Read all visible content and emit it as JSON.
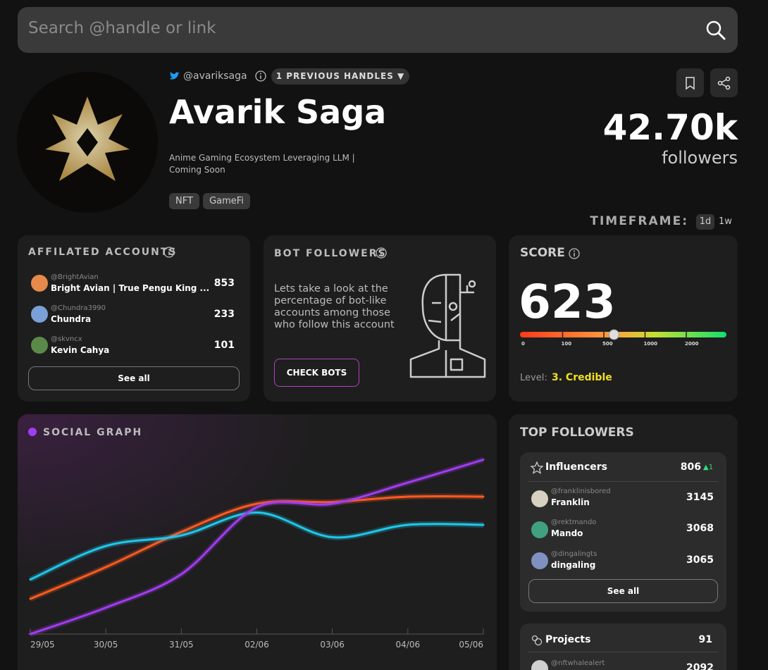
{
  "search": {
    "placeholder": "Search @handle or link"
  },
  "profile": {
    "handle": "@avariksaga",
    "previous_handles": "1 PREVIOUS HANDLES ▼",
    "name": "Avarik Saga",
    "bio": "Anime Gaming Ecosystem Leveraging LLM | Coming Soon",
    "tags": [
      "NFT",
      "GameFi"
    ],
    "followers_count": "42.70k",
    "followers_label": "followers"
  },
  "timeframe": {
    "label": "TIMEFRAME:",
    "options": [
      "1d",
      "1w"
    ]
  },
  "affiliated": {
    "title": "AFFILATED ACCOUNTS",
    "button": "See all",
    "accounts": [
      {
        "handle": "@BrightAvian",
        "name": "Bright Avian | True Pengu King ...",
        "count": 853
      },
      {
        "handle": "@Chundra3990",
        "name": "Chundra",
        "count": 233
      },
      {
        "handle": "@skvncx",
        "name": "Kevin Cahya",
        "count": 101
      }
    ]
  },
  "bot_followers": {
    "title": "BOT FOLLOWERS",
    "text": "Lets take a look at the percentage of bot-like accounts among those who follow this account",
    "button": "CHECK BOTS"
  },
  "score": {
    "title": "SCORE",
    "value": 623,
    "scale": [
      0,
      100,
      500,
      1000,
      2000
    ],
    "level_label": "Level:",
    "level": "3. Credible"
  },
  "social_graph": {
    "type": "line",
    "title": "SOCIAL GRAPH",
    "categories": [
      "29/05",
      "30/05",
      "31/05",
      "02/06",
      "03/06",
      "04/06",
      "05/06"
    ],
    "ylim": [
      0,
      100
    ],
    "series": [
      {
        "color": "#ff5a1f",
        "values": [
          20,
          38,
          58,
          74,
          75,
          78,
          78
        ]
      },
      {
        "color": "#1ec8ea",
        "values": [
          31,
          50,
          56,
          69,
          55,
          62,
          62
        ]
      },
      {
        "color": "#a23cf0",
        "values": [
          0,
          15,
          34,
          72,
          74,
          86,
          99
        ]
      }
    ]
  },
  "top_followers": {
    "title": "TOP FOLLOWERS",
    "influencers": {
      "title": "Influencers",
      "count": 806,
      "change": "▲1",
      "button": "See all",
      "accounts": [
        {
          "handle": "@franklinisbored",
          "name": "Franklin",
          "count": 3145
        },
        {
          "handle": "@rektmando",
          "name": "Mando",
          "count": 3068
        },
        {
          "handle": "@dingalingts",
          "name": "dingaling",
          "count": 3065
        }
      ]
    },
    "projects": {
      "title": "Projects",
      "count": 91,
      "accounts": [
        {
          "handle": "@nftwhalealert",
          "count": 2092
        }
      ]
    }
  }
}
